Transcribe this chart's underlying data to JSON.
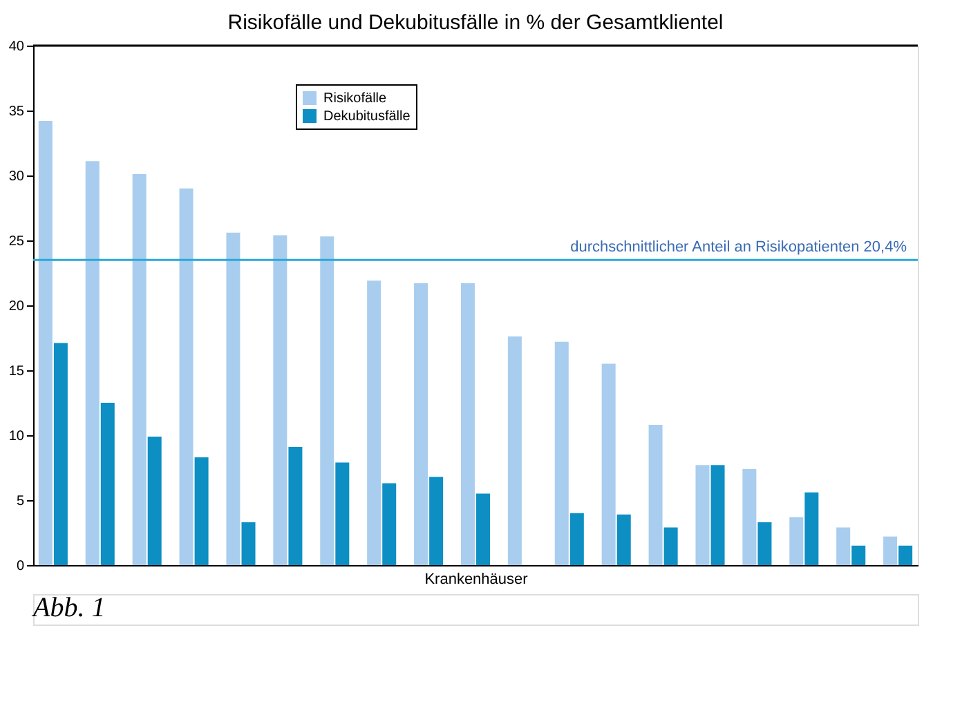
{
  "chart_data": {
    "type": "bar",
    "title": "Risikofälle und Dekubitusfälle in % der Gesamtklientel",
    "xlabel": "Krankenhäuser",
    "categories": [
      null,
      null,
      null,
      null,
      null,
      null,
      null,
      null,
      null,
      null,
      null,
      null,
      null,
      null,
      null,
      null,
      null,
      null,
      null
    ],
    "series": [
      {
        "name": "Risikofälle",
        "color": "#a9cdee",
        "values": [
          34.2,
          31.1,
          30.1,
          29.0,
          25.6,
          25.4,
          25.3,
          21.9,
          21.7,
          21.7,
          17.6,
          17.2,
          15.5,
          10.8,
          7.7,
          7.4,
          3.7,
          2.9,
          2.2
        ]
      },
      {
        "name": "Dekubitusfälle",
        "color": "#0d8fc4",
        "values": [
          17.1,
          12.5,
          9.9,
          8.3,
          3.3,
          9.1,
          7.9,
          6.3,
          6.8,
          5.5,
          null,
          4.0,
          3.9,
          2.9,
          7.7,
          3.3,
          5.6,
          1.5,
          1.5
        ]
      }
    ],
    "ylim": [
      0,
      40
    ],
    "yticks": [
      0,
      5,
      10,
      15,
      20,
      25,
      30,
      35,
      40
    ],
    "grid": false,
    "legend": "top left",
    "tick_labels": "y",
    "ref_lines": [
      {
        "axis": "y",
        "value": 23.5,
        "label": "durchschnittlicher Anteil an Risikopatienten 20,4%",
        "color": "#29a9d8"
      }
    ],
    "annotations": [
      "Abb. 1"
    ]
  }
}
